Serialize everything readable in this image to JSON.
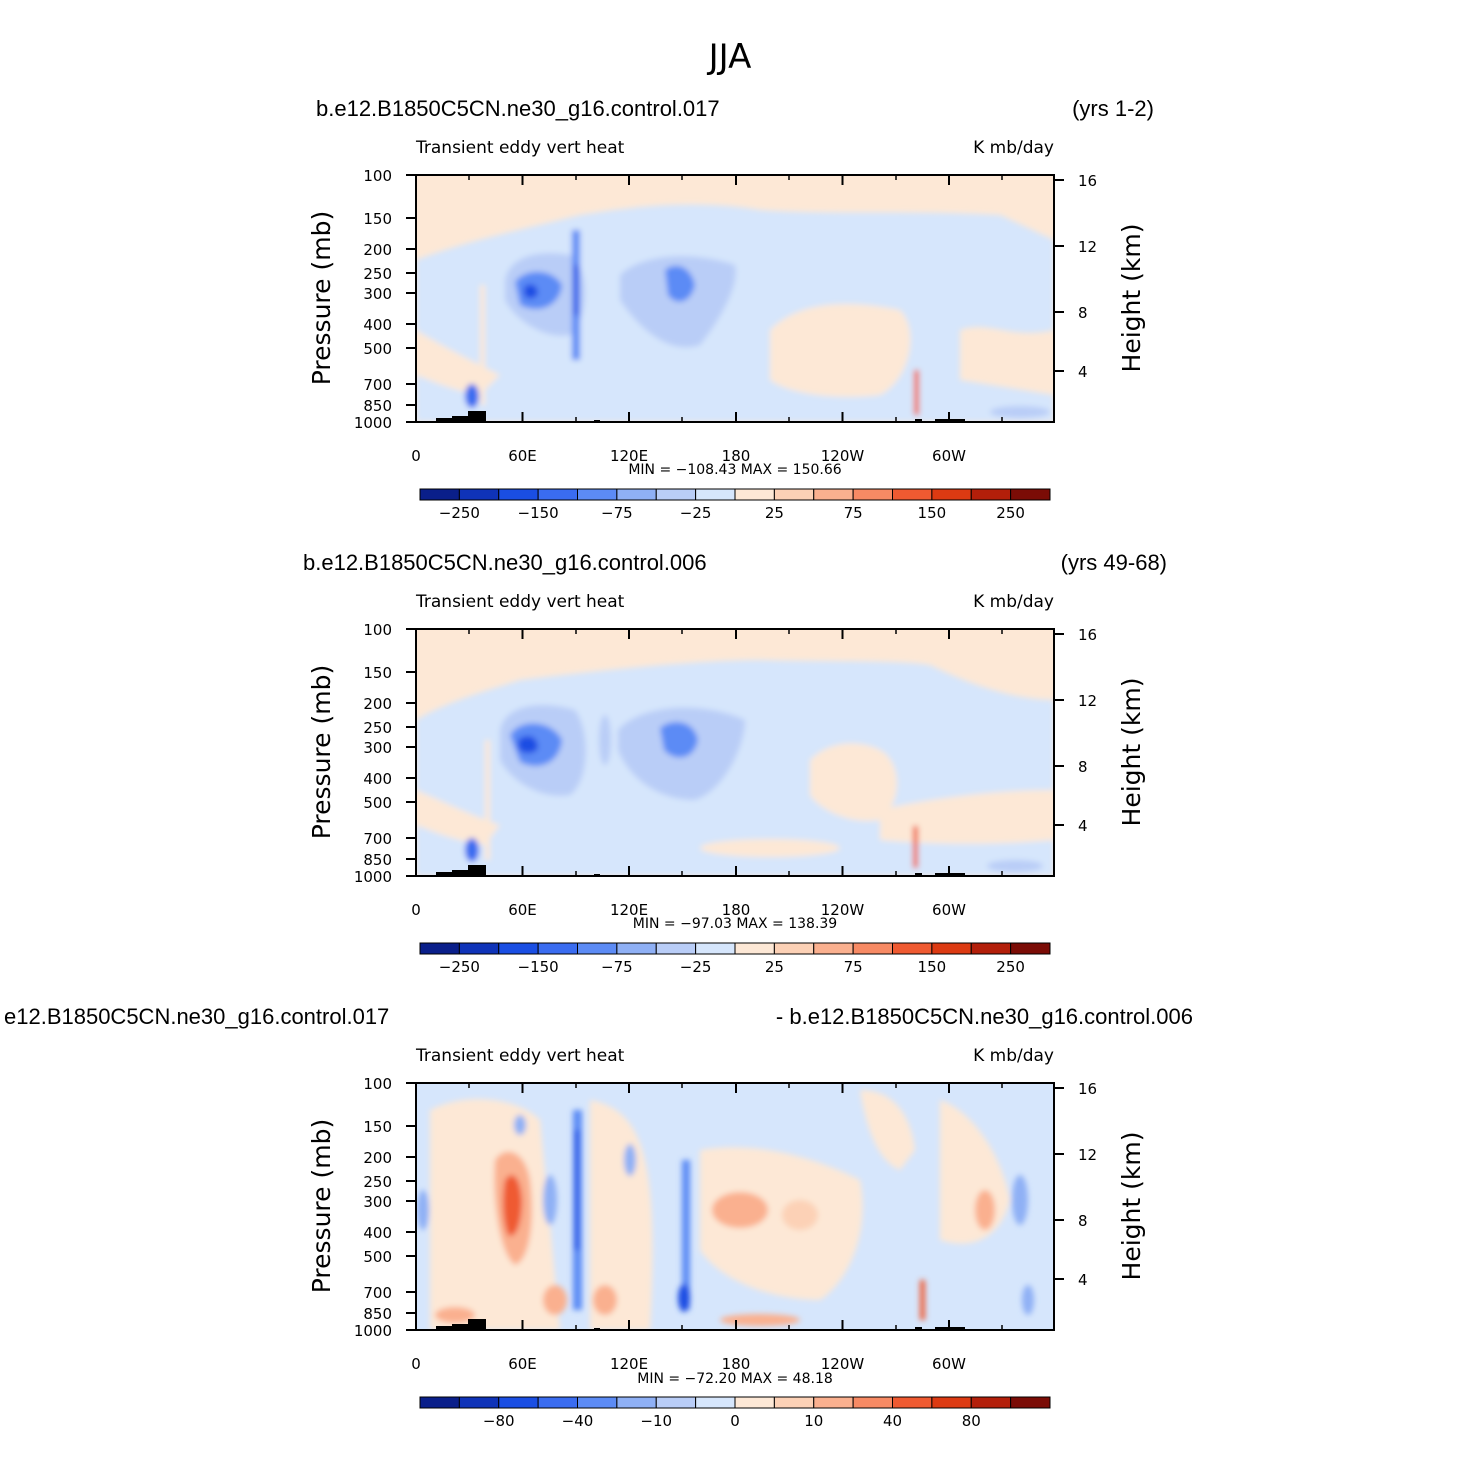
{
  "page_title": "JJA",
  "colors": {
    "neg": [
      "#0a1f8a",
      "#0f33b8",
      "#1a4ee3",
      "#3a6cf0",
      "#5c8bf5",
      "#8fb0f5",
      "#b9cdf7",
      "#d6e6fc"
    ],
    "pos": [
      "#fde8d6",
      "#fcd1b6",
      "#fab08f",
      "#f78a64",
      "#ef5a31",
      "#dc3a12",
      "#b31f0a",
      "#7b0c06"
    ]
  },
  "chart_data": [
    {
      "type": "heatmap",
      "id": "panel1",
      "case_left": "b.e12.B1850C5CN.ne30_g16.control.017",
      "case_right": "(yrs 1-2)",
      "title": "Transient eddy vert heat",
      "units": "K mb/day",
      "ylabel": "Pressure (mb)",
      "ylabel_right": "Height (km)",
      "xticks": [
        "0",
        "60E",
        "120E",
        "180",
        "120W",
        "60W"
      ],
      "yticks": [
        "100",
        "150",
        "200",
        "250",
        "300",
        "400",
        "500",
        "700",
        "850",
        "1000"
      ],
      "yticks_right": [
        "16",
        "12",
        "8",
        "4"
      ],
      "min_max": "MIN = −108.43   MAX = 150.66",
      "colorbar_labels": [
        "−250",
        "−150",
        "−75",
        "−25",
        "25",
        "75",
        "150",
        "250"
      ],
      "min": -108.43,
      "max": 150.66
    },
    {
      "type": "heatmap",
      "id": "panel2",
      "case_left": "b.e12.B1850C5CN.ne30_g16.control.006",
      "case_right": "(yrs 49-68)",
      "title": "Transient eddy vert heat",
      "units": "K mb/day",
      "ylabel": "Pressure (mb)",
      "ylabel_right": "Height (km)",
      "xticks": [
        "0",
        "60E",
        "120E",
        "180",
        "120W",
        "60W"
      ],
      "yticks": [
        "100",
        "150",
        "200",
        "250",
        "300",
        "400",
        "500",
        "700",
        "850",
        "1000"
      ],
      "yticks_right": [
        "16",
        "12",
        "8",
        "4"
      ],
      "min_max": "MIN = −97.03   MAX = 138.39",
      "colorbar_labels": [
        "−250",
        "−150",
        "−75",
        "−25",
        "25",
        "75",
        "150",
        "250"
      ],
      "min": -97.03,
      "max": 138.39
    },
    {
      "type": "heatmap",
      "id": "panel3",
      "case_left": "e12.B1850C5CN.ne30_g16.control.017",
      "case_right": "- b.e12.B1850C5CN.ne30_g16.control.006",
      "title": "Transient eddy vert heat",
      "units": "K mb/day",
      "ylabel": "Pressure (mb)",
      "ylabel_right": "Height (km)",
      "xticks": [
        "0",
        "60E",
        "120E",
        "180",
        "120W",
        "60W"
      ],
      "yticks": [
        "100",
        "150",
        "200",
        "250",
        "300",
        "400",
        "500",
        "700",
        "850",
        "1000"
      ],
      "yticks_right": [
        "16",
        "12",
        "8",
        "4"
      ],
      "min_max": "MIN = −72.20   MAX =   48.18",
      "colorbar_labels": [
        "−80",
        "−40",
        "−10",
        "0",
        "10",
        "40",
        "80"
      ],
      "min": -72.2,
      "max": 48.18
    }
  ]
}
